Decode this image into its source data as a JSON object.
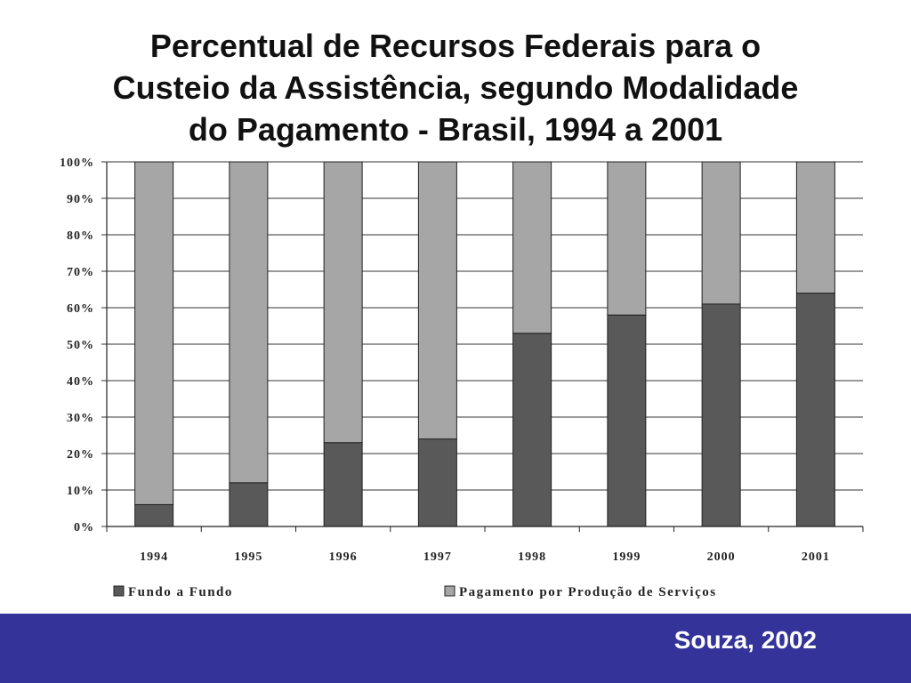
{
  "slide": {
    "title_lines": [
      "Percentual de Recursos Federais para o",
      "Custeio da Assistência, segundo Modalidade",
      "do Pagamento - Brasil, 1994 a 2001"
    ],
    "source": "Souza, 2002",
    "footer_color": "#33339a"
  },
  "chart_data": {
    "type": "bar",
    "stacked": true,
    "title": "Percentual de Recursos Federais para o Custeio da Assistência, segundo Modalidade do Pagamento - Brasil, 1994 a 2001",
    "categories": [
      "1994",
      "1995",
      "1996",
      "1997",
      "1998",
      "1999",
      "2000",
      "2001"
    ],
    "series": [
      {
        "name": "Fundo a Fundo",
        "color": "#595959",
        "values": [
          6,
          12,
          23,
          24,
          53,
          58,
          61,
          64
        ]
      },
      {
        "name": "Pagamento por Produção de Serviços",
        "color": "#a6a6a6",
        "values": [
          94,
          88,
          77,
          76,
          47,
          42,
          39,
          36
        ]
      }
    ],
    "ylim": [
      0,
      100
    ],
    "yticks": [
      "0%",
      "10%",
      "20%",
      "30%",
      "40%",
      "50%",
      "60%",
      "70%",
      "80%",
      "90%",
      "100%"
    ],
    "grid": true,
    "legend_position": "bottom"
  }
}
